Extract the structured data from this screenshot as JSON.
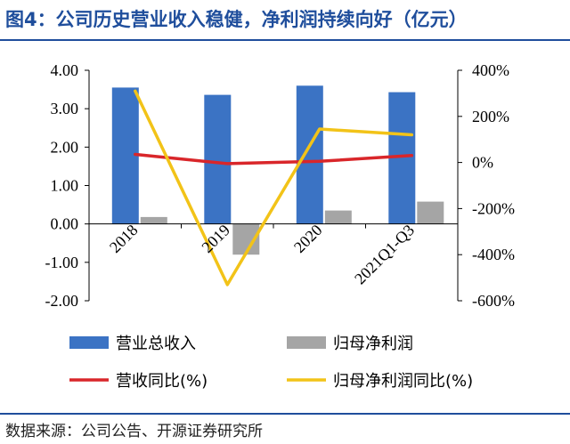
{
  "title": "图4：公司历史营业收入稳健，净利润持续向好（亿元）",
  "source": "数据来源：公司公告、开源证券研究所",
  "colors": {
    "revenue_bar": "#3b73c4",
    "net_profit_bar": "#a5a5a5",
    "revenue_yoy_line": "#d9262a",
    "net_profit_yoy_line": "#f2c318",
    "axis": "#000000",
    "title": "#1f4e9c"
  },
  "chart_data": {
    "type": "bar",
    "categories": [
      "2018",
      "2019",
      "2020",
      "2021Q1-Q3"
    ],
    "series": [
      {
        "name": "营业总收入",
        "type": "bar",
        "axis": "left",
        "values": [
          3.55,
          3.36,
          3.6,
          3.43
        ]
      },
      {
        "name": "归母净利润",
        "type": "bar",
        "axis": "left",
        "values": [
          0.18,
          -0.8,
          0.35,
          0.58
        ]
      },
      {
        "name": "营收同比(%)",
        "type": "line",
        "axis": "right",
        "values": [
          35,
          -5,
          5,
          30
        ]
      },
      {
        "name": "归母净利润同比(%)",
        "type": "line",
        "axis": "right",
        "values": [
          310,
          -530,
          145,
          120
        ]
      }
    ],
    "left_axis": {
      "ylim": [
        -2.0,
        4.0
      ],
      "ticks": [
        "4.00",
        "3.00",
        "2.00",
        "1.00",
        "0.00",
        "-1.00",
        "-2.00"
      ]
    },
    "right_axis": {
      "ylim": [
        -600,
        400
      ],
      "ticks": [
        "400%",
        "200%",
        "0%",
        "-200%",
        "-400%",
        "-600%"
      ]
    },
    "grid": false,
    "legend_position": "bottom"
  }
}
